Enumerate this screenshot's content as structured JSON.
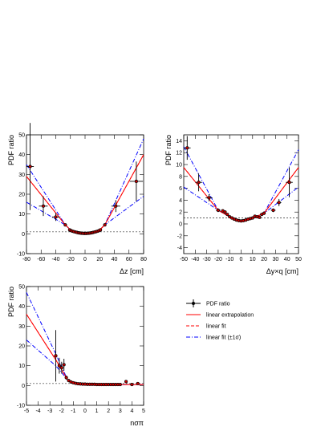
{
  "chart_data": [
    {
      "type": "scatter",
      "xlabel": "Δz [cm]",
      "ylabel": "PDF ratio",
      "xlim": [
        -80,
        80
      ],
      "ylim": [
        -10,
        50
      ],
      "xticks": [
        -80,
        -60,
        -40,
        -20,
        0,
        20,
        40,
        60,
        80
      ],
      "yticks": [
        -10,
        0,
        10,
        20,
        30,
        40,
        50
      ],
      "reference_line": 1,
      "points": [
        {
          "x": -75,
          "y": 34,
          "xerr": 5,
          "yerr": 22
        },
        {
          "x": -57,
          "y": 14,
          "xerr": 6,
          "yerr": 5
        },
        {
          "x": -40,
          "y": 8.5,
          "xerr": 5,
          "yerr": 2
        },
        {
          "x": -27,
          "y": 4.5,
          "xerr": 2,
          "yerr": 0.5
        },
        {
          "x": -21,
          "y": 2,
          "xerr": 1,
          "yerr": 0.3
        },
        {
          "x": -19,
          "y": 1.6,
          "xerr": 1,
          "yerr": 0.2
        },
        {
          "x": -17,
          "y": 1.3,
          "xerr": 1,
          "yerr": 0.2
        },
        {
          "x": -15,
          "y": 1.1,
          "xerr": 1,
          "yerr": 0.2
        },
        {
          "x": -13,
          "y": 0.9,
          "xerr": 1,
          "yerr": 0.2
        },
        {
          "x": -11,
          "y": 0.7,
          "xerr": 1,
          "yerr": 0.2
        },
        {
          "x": -9,
          "y": 0.5,
          "xerr": 1,
          "yerr": 0.2
        },
        {
          "x": -7,
          "y": 0.4,
          "xerr": 1,
          "yerr": 0.2
        },
        {
          "x": -5,
          "y": 0.3,
          "xerr": 1,
          "yerr": 0.2
        },
        {
          "x": -3,
          "y": 0.25,
          "xerr": 1,
          "yerr": 0.2
        },
        {
          "x": -1,
          "y": 0.2,
          "xerr": 1,
          "yerr": 0.2
        },
        {
          "x": 1,
          "y": 0.2,
          "xerr": 1,
          "yerr": 0.2
        },
        {
          "x": 3,
          "y": 0.25,
          "xerr": 1,
          "yerr": 0.2
        },
        {
          "x": 5,
          "y": 0.3,
          "xerr": 1,
          "yerr": 0.2
        },
        {
          "x": 7,
          "y": 0.4,
          "xerr": 1,
          "yerr": 0.2
        },
        {
          "x": 9,
          "y": 0.5,
          "xerr": 1,
          "yerr": 0.2
        },
        {
          "x": 11,
          "y": 0.7,
          "xerr": 1,
          "yerr": 0.2
        },
        {
          "x": 13,
          "y": 0.9,
          "xerr": 1,
          "yerr": 0.2
        },
        {
          "x": 15,
          "y": 1.1,
          "xerr": 1,
          "yerr": 0.2
        },
        {
          "x": 17,
          "y": 1.3,
          "xerr": 1,
          "yerr": 0.2
        },
        {
          "x": 19,
          "y": 1.6,
          "xerr": 1,
          "yerr": 0.2
        },
        {
          "x": 21,
          "y": 2,
          "xerr": 1,
          "yerr": 0.3
        },
        {
          "x": 27,
          "y": 4.5,
          "xerr": 2,
          "yerr": 0.5
        },
        {
          "x": 42,
          "y": 14,
          "xerr": 6,
          "yerr": 3
        },
        {
          "x": 70,
          "y": 26.5,
          "xerr": 9,
          "yerr": 10
        }
      ],
      "lines": {
        "extrapolation": [
          [
            -80,
            29
          ],
          [
            -27,
            4.5
          ],
          [
            -20,
            2
          ],
          [
            0,
            0.2
          ],
          [
            20,
            2
          ],
          [
            27,
            4.5
          ],
          [
            80,
            40
          ]
        ],
        "fit": [
          [
            -80,
            29
          ],
          [
            -27,
            4.5
          ],
          [
            -20,
            2
          ],
          [
            0,
            0.2
          ],
          [
            20,
            2
          ],
          [
            27,
            4.5
          ],
          [
            80,
            40
          ]
        ],
        "fit_upper": [
          [
            -80,
            35
          ],
          [
            -27,
            4.5
          ],
          [
            -20,
            2
          ],
          [
            0,
            0.2
          ],
          [
            20,
            2
          ],
          [
            27,
            4.5
          ],
          [
            80,
            48
          ]
        ],
        "fit_lower": [
          [
            -80,
            16
          ],
          [
            -27,
            4.5
          ],
          [
            -20,
            2
          ],
          [
            0,
            0.2
          ],
          [
            20,
            2
          ],
          [
            27,
            4.5
          ],
          [
            80,
            19
          ]
        ]
      }
    },
    {
      "type": "scatter",
      "xlabel": "Δy×q [cm]",
      "ylabel": "PDF ratio",
      "xlim": [
        -50,
        50
      ],
      "ylim": [
        -5,
        15
      ],
      "xticks": [
        -50,
        -40,
        -30,
        -20,
        -10,
        0,
        10,
        20,
        30,
        40,
        50
      ],
      "yticks": [
        -4,
        -2,
        0,
        2,
        4,
        6,
        8,
        10,
        12,
        14
      ],
      "reference_line": 1,
      "points": [
        {
          "x": -47,
          "y": 12.8,
          "xerr": 3,
          "yerr": 2
        },
        {
          "x": -37,
          "y": 7,
          "xerr": 3,
          "yerr": 1.5
        },
        {
          "x": -28,
          "y": 4.4,
          "xerr": 3,
          "yerr": 0.6
        },
        {
          "x": -20,
          "y": 2.3,
          "xerr": 2,
          "yerr": 0.3
        },
        {
          "x": -16,
          "y": 2.2,
          "xerr": 1,
          "yerr": 0.2
        },
        {
          "x": -14,
          "y": 2.0,
          "xerr": 1,
          "yerr": 0.2
        },
        {
          "x": -12,
          "y": 1.6,
          "xerr": 1,
          "yerr": 0.2
        },
        {
          "x": -10,
          "y": 1.2,
          "xerr": 1,
          "yerr": 0.2
        },
        {
          "x": -8,
          "y": 1.0,
          "xerr": 1,
          "yerr": 0.2
        },
        {
          "x": -6,
          "y": 0.8,
          "xerr": 1,
          "yerr": 0.2
        },
        {
          "x": -4,
          "y": 0.65,
          "xerr": 1,
          "yerr": 0.2
        },
        {
          "x": -2,
          "y": 0.55,
          "xerr": 1,
          "yerr": 0.2
        },
        {
          "x": 0,
          "y": 0.5,
          "xerr": 1,
          "yerr": 0.2
        },
        {
          "x": 2,
          "y": 0.55,
          "xerr": 1,
          "yerr": 0.2
        },
        {
          "x": 4,
          "y": 0.65,
          "xerr": 1,
          "yerr": 0.2
        },
        {
          "x": 6,
          "y": 0.8,
          "xerr": 1,
          "yerr": 0.2
        },
        {
          "x": 8,
          "y": 0.9,
          "xerr": 1,
          "yerr": 0.2
        },
        {
          "x": 10,
          "y": 1.0,
          "xerr": 1,
          "yerr": 0.2
        },
        {
          "x": 12,
          "y": 1.3,
          "xerr": 1,
          "yerr": 0.2
        },
        {
          "x": 14,
          "y": 1.2,
          "xerr": 1,
          "yerr": 0.2
        },
        {
          "x": 16,
          "y": 1.1,
          "xerr": 1,
          "yerr": 0.2
        },
        {
          "x": 18,
          "y": 1.6,
          "xerr": 1,
          "yerr": 0.2
        },
        {
          "x": 20,
          "y": 1.8,
          "xerr": 1,
          "yerr": 0.3
        },
        {
          "x": 28,
          "y": 2.3,
          "xerr": 2,
          "yerr": 0.3
        },
        {
          "x": 33,
          "y": 3.6,
          "xerr": 2,
          "yerr": 0.6
        },
        {
          "x": 42,
          "y": 7,
          "xerr": 3,
          "yerr": 2.5
        }
      ],
      "lines": {
        "extrapolation": [
          [
            -50,
            9.5
          ],
          [
            -20,
            2.3
          ],
          [
            -10,
            1.2
          ],
          [
            0,
            0.5
          ],
          [
            10,
            1.0
          ],
          [
            20,
            1.8
          ],
          [
            50,
            9.5
          ]
        ],
        "fit": [
          [
            -50,
            9.5
          ],
          [
            -20,
            2.3
          ],
          [
            -10,
            1.2
          ],
          [
            0,
            0.5
          ],
          [
            10,
            1.0
          ],
          [
            20,
            1.8
          ],
          [
            50,
            9.5
          ]
        ],
        "fit_upper": [
          [
            -50,
            13
          ],
          [
            -20,
            2.3
          ],
          [
            -10,
            1.2
          ],
          [
            0,
            0.5
          ],
          [
            10,
            1.0
          ],
          [
            20,
            1.8
          ],
          [
            50,
            12.5
          ]
        ],
        "fit_lower": [
          [
            -50,
            6.2
          ],
          [
            -20,
            2.3
          ],
          [
            -10,
            1.2
          ],
          [
            0,
            0.5
          ],
          [
            10,
            1.0
          ],
          [
            20,
            1.8
          ],
          [
            50,
            6.2
          ]
        ]
      }
    },
    {
      "type": "scatter",
      "xlabel": "nσπ",
      "ylabel": "PDF ratio",
      "xlim": [
        -5,
        5
      ],
      "ylim": [
        -10,
        50
      ],
      "xticks": [
        -5,
        -4,
        -3,
        -2,
        -1,
        0,
        1,
        2,
        3,
        4,
        5
      ],
      "yticks": [
        -10,
        0,
        10,
        20,
        30,
        40,
        50
      ],
      "reference_line": 1,
      "points": [
        {
          "x": -2.5,
          "y": 15,
          "xerr": 0.1,
          "yerr": 13
        },
        {
          "x": -2.2,
          "y": 10,
          "xerr": 0.1,
          "yerr": 4
        },
        {
          "x": -2.0,
          "y": 9,
          "xerr": 0.1,
          "yerr": 3
        },
        {
          "x": -1.8,
          "y": 10.5,
          "xerr": 0.1,
          "yerr": 3
        },
        {
          "x": -1.6,
          "y": 4,
          "xerr": 0.1,
          "yerr": 1
        },
        {
          "x": -1.4,
          "y": 2.5,
          "xerr": 0.1,
          "yerr": 0.5
        },
        {
          "x": -1.2,
          "y": 1.8,
          "xerr": 0.1,
          "yerr": 0.3
        },
        {
          "x": -1.0,
          "y": 1.4,
          "xerr": 0.1,
          "yerr": 0.2
        },
        {
          "x": -0.8,
          "y": 1.1,
          "xerr": 0.1,
          "yerr": 0.2
        },
        {
          "x": -0.6,
          "y": 0.9,
          "xerr": 0.1,
          "yerr": 0.2
        },
        {
          "x": -0.4,
          "y": 0.8,
          "xerr": 0.1,
          "yerr": 0.2
        },
        {
          "x": -0.2,
          "y": 0.7,
          "xerr": 0.1,
          "yerr": 0.2
        },
        {
          "x": 0.0,
          "y": 0.7,
          "xerr": 0.1,
          "yerr": 0.2
        },
        {
          "x": 0.2,
          "y": 0.6,
          "xerr": 0.1,
          "yerr": 0.2
        },
        {
          "x": 0.4,
          "y": 0.6,
          "xerr": 0.1,
          "yerr": 0.2
        },
        {
          "x": 0.6,
          "y": 0.6,
          "xerr": 0.1,
          "yerr": 0.2
        },
        {
          "x": 0.8,
          "y": 0.6,
          "xerr": 0.1,
          "yerr": 0.2
        },
        {
          "x": 1.0,
          "y": 0.5,
          "xerr": 0.1,
          "yerr": 0.2
        },
        {
          "x": 1.2,
          "y": 0.5,
          "xerr": 0.1,
          "yerr": 0.2
        },
        {
          "x": 1.4,
          "y": 0.5,
          "xerr": 0.1,
          "yerr": 0.2
        },
        {
          "x": 1.6,
          "y": 0.5,
          "xerr": 0.1,
          "yerr": 0.2
        },
        {
          "x": 1.8,
          "y": 0.5,
          "xerr": 0.1,
          "yerr": 0.2
        },
        {
          "x": 2.0,
          "y": 0.5,
          "xerr": 0.1,
          "yerr": 0.2
        },
        {
          "x": 2.2,
          "y": 0.5,
          "xerr": 0.1,
          "yerr": 0.2
        },
        {
          "x": 2.4,
          "y": 0.5,
          "xerr": 0.1,
          "yerr": 0.2
        },
        {
          "x": 2.6,
          "y": 0.5,
          "xerr": 0.1,
          "yerr": 0.2
        },
        {
          "x": 2.8,
          "y": 0.5,
          "xerr": 0.1,
          "yerr": 0.2
        },
        {
          "x": 3.0,
          "y": 0.5,
          "xerr": 0.1,
          "yerr": 0.2
        },
        {
          "x": 3.5,
          "y": 2,
          "xerr": 0.1,
          "yerr": 0.5
        },
        {
          "x": 4.0,
          "y": 0.5,
          "xerr": 0.1,
          "yerr": 0.2
        },
        {
          "x": 4.5,
          "y": 1,
          "xerr": 0.1,
          "yerr": 0.5
        }
      ],
      "lines": {
        "extrapolation": [
          [
            -5,
            36
          ],
          [
            -2.5,
            13
          ],
          [
            -1.5,
            3
          ],
          [
            -1,
            1.4
          ],
          [
            0,
            0.7
          ],
          [
            3,
            0.5
          ],
          [
            5,
            0.5
          ]
        ],
        "fit": [
          [
            -5,
            36
          ],
          [
            -2.5,
            13
          ],
          [
            -1.5,
            3
          ],
          [
            -1,
            1.4
          ],
          [
            0,
            0.7
          ],
          [
            3,
            0.5
          ],
          [
            5,
            0.5
          ]
        ],
        "fit_upper": [
          [
            -5,
            47
          ],
          [
            -2.5,
            16
          ],
          [
            -1.5,
            3
          ],
          [
            -1,
            1.4
          ],
          [
            0,
            0.7
          ],
          [
            3,
            0.5
          ],
          [
            5,
            0.5
          ]
        ],
        "fit_lower": [
          [
            -5,
            23
          ],
          [
            -2.5,
            10
          ],
          [
            -1.5,
            3
          ],
          [
            -1,
            1.4
          ],
          [
            0,
            0.7
          ],
          [
            3,
            0.5
          ],
          [
            5,
            0.5
          ]
        ]
      }
    }
  ],
  "legend": {
    "items": [
      {
        "label": "PDF ratio",
        "style": "marker",
        "color": "#000000"
      },
      {
        "label": "linear extrapolation",
        "style": "solid",
        "color": "#ff0000"
      },
      {
        "label": "linear fit",
        "style": "dashed",
        "color": "#ff0000"
      },
      {
        "label": "linear fit (±1σ)",
        "style": "dashdot",
        "color": "#0000ff"
      }
    ]
  },
  "colors": {
    "points": "#000000",
    "marker_fill": "#cc0000",
    "extrapolation": "#ff0000",
    "fit": "#ff0000",
    "fit_sigma": "#0000ff",
    "reference_line": "#000000"
  }
}
